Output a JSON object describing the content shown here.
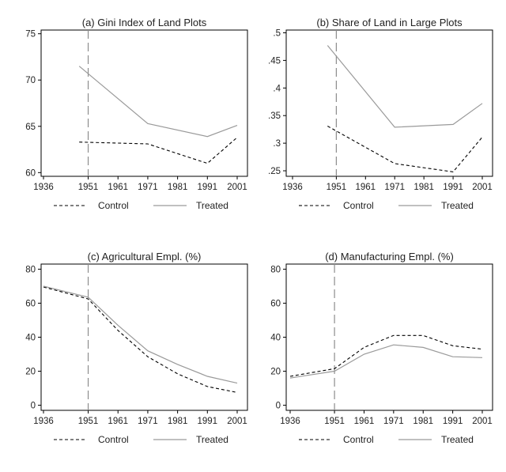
{
  "chart_data": [
    {
      "type": "line",
      "title": "(a) Gini Index of Land Plots",
      "x_ticks": [
        1936,
        1951,
        1961,
        1971,
        1981,
        1991,
        2001
      ],
      "xlim": [
        1936,
        2001
      ],
      "y_ticks": [
        60,
        65,
        70,
        75
      ],
      "y_tick_labels": [
        "60",
        "65",
        "70",
        "75"
      ],
      "ylim": [
        59.6,
        75.4
      ],
      "vline": 1951,
      "series": [
        {
          "name": "Control",
          "style": "dashed",
          "color": "#000000",
          "x": [
            1948,
            1971,
            1991,
            2001
          ],
          "y": [
            63.3,
            63.1,
            61.0,
            63.8
          ]
        },
        {
          "name": "Treated",
          "style": "solid",
          "color": "#9a9a9a",
          "x": [
            1948,
            1971,
            1991,
            2001
          ],
          "y": [
            71.5,
            65.3,
            63.9,
            65.1
          ]
        }
      ]
    },
    {
      "type": "line",
      "title": "(b) Share of Land in Large Plots",
      "x_ticks": [
        1936,
        1951,
        1961,
        1971,
        1981,
        1991,
        2001
      ],
      "xlim": [
        1936,
        2001
      ],
      "y_ticks": [
        0.25,
        0.3,
        0.35,
        0.4,
        0.45,
        0.5
      ],
      "y_tick_labels": [
        ".25",
        ".3",
        ".35",
        ".4",
        ".45",
        ".5"
      ],
      "ylim": [
        0.24,
        0.505
      ],
      "vline": 1951,
      "series": [
        {
          "name": "Control",
          "style": "dashed",
          "color": "#000000",
          "x": [
            1948,
            1971,
            1991,
            2001
          ],
          "y": [
            0.331,
            0.263,
            0.248,
            0.311
          ]
        },
        {
          "name": "Treated",
          "style": "solid",
          "color": "#9a9a9a",
          "x": [
            1948,
            1971,
            1991,
            2001
          ],
          "y": [
            0.477,
            0.329,
            0.334,
            0.372
          ]
        }
      ]
    },
    {
      "type": "line",
      "title": "(c) Agricultural Empl. (%)",
      "x_ticks": [
        1936,
        1951,
        1961,
        1971,
        1981,
        1991,
        2001
      ],
      "xlim": [
        1936,
        2001
      ],
      "y_ticks": [
        0,
        20,
        40,
        60,
        80
      ],
      "y_tick_labels": [
        "0",
        "20",
        "40",
        "60",
        "80"
      ],
      "ylim": [
        -3,
        83
      ],
      "vline": 1951,
      "series": [
        {
          "name": "Control",
          "style": "dashed",
          "color": "#000000",
          "x": [
            1936,
            1951,
            1961,
            1971,
            1981,
            1991,
            2001
          ],
          "y": [
            69.5,
            62.5,
            44,
            28.5,
            18.5,
            11,
            7.5
          ]
        },
        {
          "name": "Treated",
          "style": "solid",
          "color": "#9a9a9a",
          "x": [
            1936,
            1951,
            1961,
            1971,
            1981,
            1991,
            2001
          ],
          "y": [
            70,
            63.5,
            47,
            32,
            24,
            17,
            13
          ]
        }
      ]
    },
    {
      "type": "line",
      "title": "(d) Manufacturing Empl. (%)",
      "x_ticks": [
        1936,
        1951,
        1961,
        1971,
        1981,
        1991,
        2001
      ],
      "xlim": [
        1936,
        2001
      ],
      "y_ticks": [
        0,
        20,
        40,
        60,
        80
      ],
      "y_tick_labels": [
        "0",
        "20",
        "40",
        "60",
        "80"
      ],
      "ylim": [
        -3,
        83
      ],
      "vline": 1951,
      "series": [
        {
          "name": "Control",
          "style": "dashed",
          "color": "#000000",
          "x": [
            1936,
            1951,
            1961,
            1971,
            1981,
            1991,
            2001
          ],
          "y": [
            17,
            21.5,
            34,
            41,
            41,
            35,
            33
          ]
        },
        {
          "name": "Treated",
          "style": "solid",
          "color": "#9a9a9a",
          "x": [
            1936,
            1951,
            1961,
            1971,
            1981,
            1991,
            2001
          ],
          "y": [
            16,
            20,
            30,
            35.5,
            34,
            28.5,
            28
          ]
        }
      ]
    }
  ],
  "legend": {
    "control_label": "Control",
    "treated_label": "Treated"
  }
}
